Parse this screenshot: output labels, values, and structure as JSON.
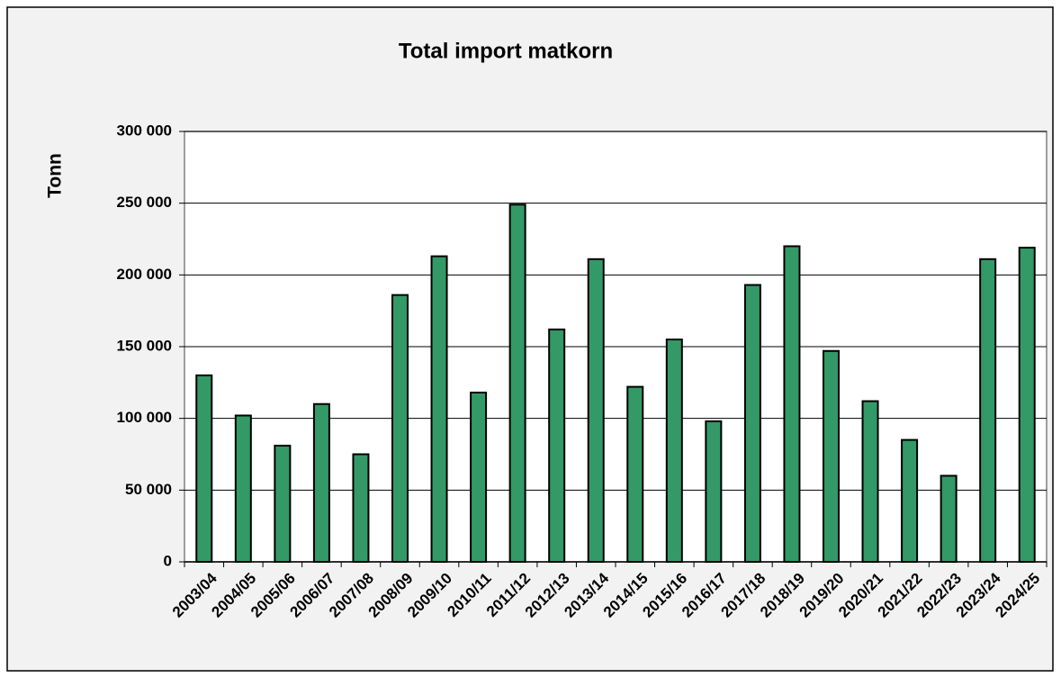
{
  "chart_data": {
    "type": "bar",
    "title": "Total import matkorn",
    "y_label": "Tonn",
    "categories": [
      "2003/04",
      "2004/05",
      "2005/06",
      "2006/07",
      "2007/08",
      "2008/09",
      "2009/10",
      "2010/11",
      "2011/12",
      "2012/13",
      "2013/14",
      "2014/15",
      "2015/16",
      "2016/17",
      "2017/18",
      "2018/19",
      "2019/20",
      "2020/21",
      "2021/22",
      "2022/23",
      "2023/24",
      "2024/25"
    ],
    "values": [
      130000,
      102000,
      81000,
      110000,
      75000,
      186000,
      213000,
      118000,
      249000,
      162000,
      211000,
      122000,
      155000,
      98000,
      193000,
      220000,
      147000,
      112000,
      85000,
      60000,
      211000,
      219000
    ],
    "color": "#339966",
    "ylim": [
      0,
      300000
    ],
    "yticks": [
      0,
      {
        "value": 50000,
        "label": "50 000"
      },
      {
        "value": 100000,
        "label": "100 000"
      },
      {
        "value": 150000,
        "label": "150 000"
      },
      {
        "value": 200000,
        "label": "200 000"
      },
      {
        "value": 250000,
        "label": "250 000"
      },
      {
        "value": 300000,
        "label": "300 000"
      }
    ],
    "grid": true
  }
}
